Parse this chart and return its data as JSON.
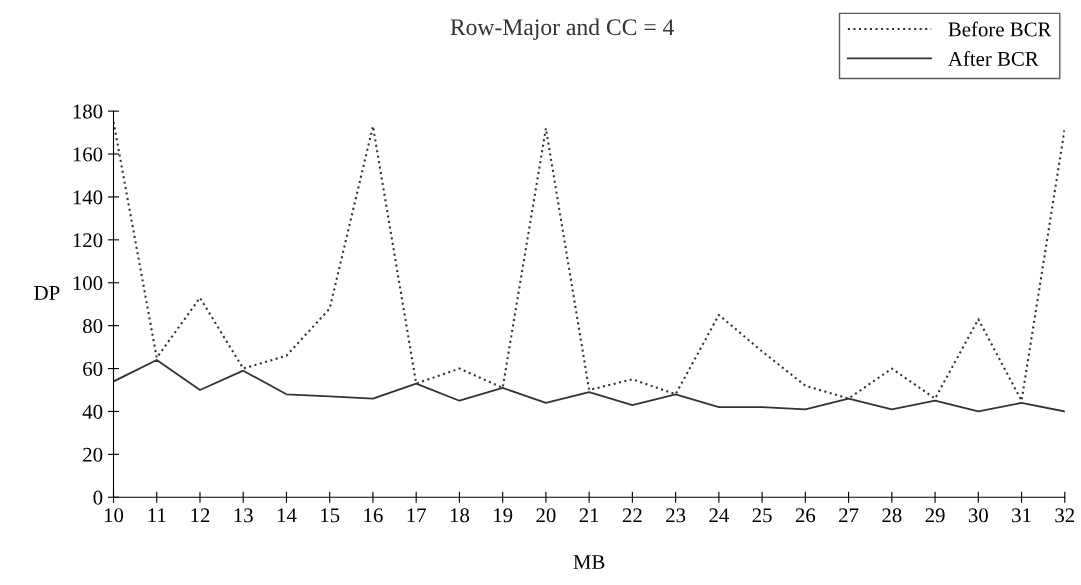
{
  "chart_data": {
    "type": "line",
    "title": "Row-Major and CC = 4",
    "xlabel": "MB",
    "ylabel": "DP",
    "x": [
      10,
      11,
      12,
      13,
      14,
      15,
      16,
      17,
      18,
      19,
      20,
      21,
      22,
      23,
      24,
      25,
      26,
      27,
      28,
      29,
      30,
      31,
      32
    ],
    "series": [
      {
        "name": "Before BCR",
        "color": "#333333",
        "line_style": "dotted",
        "values": [
          175,
          65,
          93,
          60,
          66,
          88,
          173,
          53,
          60,
          51,
          172,
          50,
          55,
          48,
          85,
          68,
          52,
          46,
          60,
          46,
          83,
          45,
          172
        ]
      },
      {
        "name": "After BCR",
        "color": "#333333",
        "line_style": "solid",
        "values": [
          54,
          64,
          50,
          59,
          48,
          47,
          46,
          53,
          45,
          51,
          44,
          49,
          43,
          48,
          42,
          42,
          41,
          46,
          41,
          45,
          40,
          44,
          40
        ]
      }
    ],
    "xlim": [
      10,
      32
    ],
    "xticks": [
      10,
      11,
      12,
      13,
      14,
      15,
      16,
      17,
      18,
      19,
      20,
      21,
      22,
      23,
      24,
      25,
      26,
      27,
      28,
      29,
      30,
      31,
      32
    ],
    "ylim": [
      0,
      180
    ],
    "yticks": [
      0,
      20,
      40,
      60,
      80,
      100,
      120,
      140,
      160,
      180
    ],
    "grid": false,
    "legend": "top right",
    "marker": "none"
  }
}
